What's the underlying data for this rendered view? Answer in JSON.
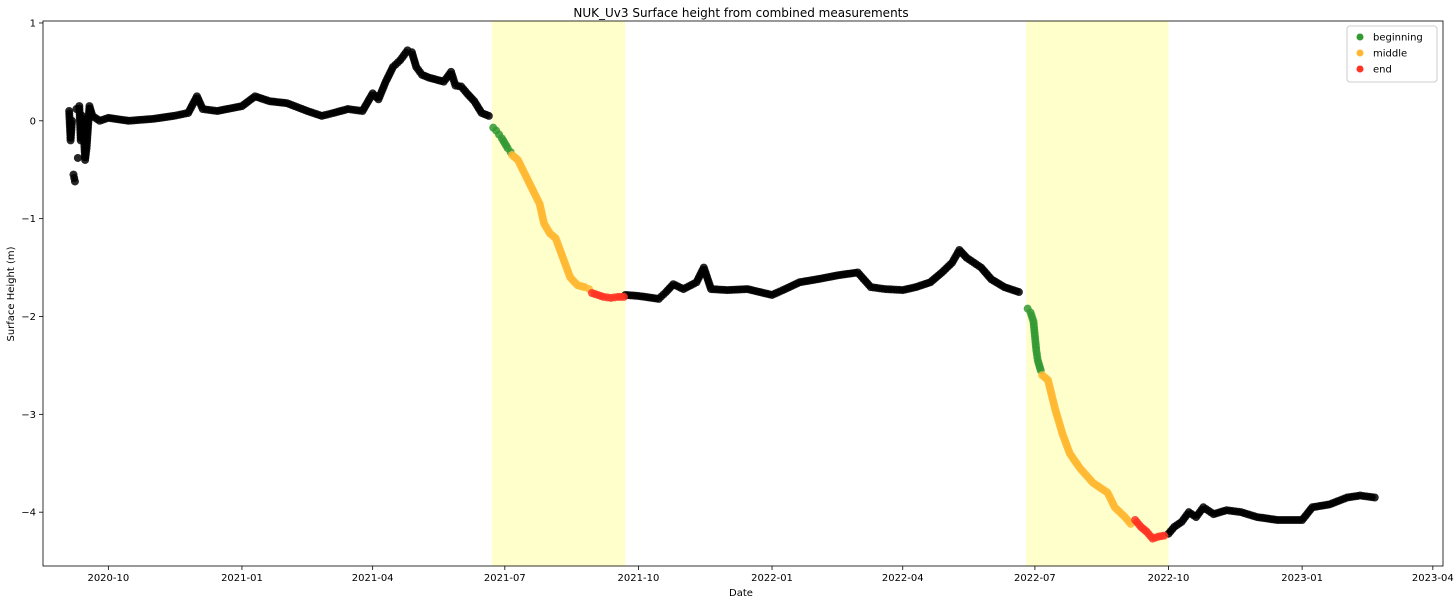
{
  "chart_data": {
    "type": "scatter",
    "title": "NUK_Uv3 Surface height from combined measurements",
    "xlabel": "Date",
    "ylabel": "Surface Height (m)",
    "xlim": [
      "2020-08-17",
      "2023-04-08"
    ],
    "ylim": [
      -4.55,
      1.02
    ],
    "grid": false,
    "legend_position": "top-right",
    "x_ticks": [
      "2020-10",
      "2021-01",
      "2021-04",
      "2021-07",
      "2021-10",
      "2022-01",
      "2022-04",
      "2022-07",
      "2022-10",
      "2023-01",
      "2023-04"
    ],
    "y_ticks": [
      1,
      0,
      -1,
      -2,
      -3,
      -4
    ],
    "shaded_periods": [
      {
        "start": "2021-06-22",
        "end": "2021-09-22",
        "color": "#ffffcc"
      },
      {
        "start": "2022-06-25",
        "end": "2022-10-01",
        "color": "#ffffcc"
      }
    ],
    "series": [
      {
        "name": "",
        "color": "#000000",
        "points": [
          [
            "2020-09-04",
            0.1
          ],
          [
            "2020-09-05",
            -0.2
          ],
          [
            "2020-09-06",
            0.0
          ],
          [
            "2020-09-07",
            -0.55
          ],
          [
            "2020-09-08",
            -0.62
          ],
          [
            "2020-09-09",
            0.12
          ],
          [
            "2020-09-10",
            -0.38
          ],
          [
            "2020-09-11",
            0.15
          ],
          [
            "2020-09-12",
            -0.2
          ],
          [
            "2020-09-13",
            0.05
          ],
          [
            "2020-09-14",
            -0.1
          ],
          [
            "2020-09-15",
            -0.4
          ],
          [
            "2020-09-16",
            -0.28
          ],
          [
            "2020-09-18",
            0.15
          ],
          [
            "2020-09-20",
            0.05
          ],
          [
            "2020-09-25",
            0.0
          ],
          [
            "2020-10-01",
            0.03
          ],
          [
            "2020-10-15",
            0.0
          ],
          [
            "2020-11-01",
            0.02
          ],
          [
            "2020-11-15",
            0.05
          ],
          [
            "2020-11-25",
            0.08
          ],
          [
            "2020-12-01",
            0.25
          ],
          [
            "2020-12-05",
            0.12
          ],
          [
            "2020-12-15",
            0.1
          ],
          [
            "2021-01-01",
            0.15
          ],
          [
            "2021-01-10",
            0.25
          ],
          [
            "2021-01-20",
            0.2
          ],
          [
            "2021-02-01",
            0.18
          ],
          [
            "2021-02-15",
            0.1
          ],
          [
            "2021-02-25",
            0.05
          ],
          [
            "2021-03-05",
            0.08
          ],
          [
            "2021-03-15",
            0.12
          ],
          [
            "2021-03-25",
            0.1
          ],
          [
            "2021-04-01",
            0.28
          ],
          [
            "2021-04-05",
            0.22
          ],
          [
            "2021-04-10",
            0.4
          ],
          [
            "2021-04-15",
            0.55
          ],
          [
            "2021-04-20",
            0.62
          ],
          [
            "2021-04-25",
            0.72
          ],
          [
            "2021-04-28",
            0.7
          ],
          [
            "2021-05-01",
            0.55
          ],
          [
            "2021-05-05",
            0.47
          ],
          [
            "2021-05-10",
            0.44
          ],
          [
            "2021-05-15",
            0.42
          ],
          [
            "2021-05-20",
            0.4
          ],
          [
            "2021-05-25",
            0.5
          ],
          [
            "2021-05-28",
            0.36
          ],
          [
            "2021-06-01",
            0.35
          ],
          [
            "2021-06-05",
            0.28
          ],
          [
            "2021-06-10",
            0.2
          ],
          [
            "2021-06-15",
            0.08
          ],
          [
            "2021-06-20",
            0.05
          ],
          [
            "2021-09-22",
            -1.78
          ],
          [
            "2021-10-01",
            -1.79
          ],
          [
            "2021-10-15",
            -1.82
          ],
          [
            "2021-10-20",
            -1.75
          ],
          [
            "2021-10-25",
            -1.67
          ],
          [
            "2021-11-01",
            -1.72
          ],
          [
            "2021-11-10",
            -1.65
          ],
          [
            "2021-11-15",
            -1.5
          ],
          [
            "2021-11-20",
            -1.72
          ],
          [
            "2021-12-01",
            -1.73
          ],
          [
            "2021-12-15",
            -1.72
          ],
          [
            "2022-01-01",
            -1.78
          ],
          [
            "2022-01-10",
            -1.72
          ],
          [
            "2022-01-20",
            -1.65
          ],
          [
            "2022-02-01",
            -1.62
          ],
          [
            "2022-02-15",
            -1.58
          ],
          [
            "2022-03-01",
            -1.55
          ],
          [
            "2022-03-10",
            -1.7
          ],
          [
            "2022-03-20",
            -1.72
          ],
          [
            "2022-04-01",
            -1.73
          ],
          [
            "2022-04-10",
            -1.7
          ],
          [
            "2022-04-20",
            -1.65
          ],
          [
            "2022-04-28",
            -1.55
          ],
          [
            "2022-05-05",
            -1.45
          ],
          [
            "2022-05-10",
            -1.32
          ],
          [
            "2022-05-15",
            -1.4
          ],
          [
            "2022-05-20",
            -1.45
          ],
          [
            "2022-05-25",
            -1.5
          ],
          [
            "2022-06-01",
            -1.62
          ],
          [
            "2022-06-10",
            -1.7
          ],
          [
            "2022-06-20",
            -1.75
          ],
          [
            "2022-10-01",
            -4.22
          ],
          [
            "2022-10-05",
            -4.15
          ],
          [
            "2022-10-10",
            -4.1
          ],
          [
            "2022-10-15",
            -4.0
          ],
          [
            "2022-10-20",
            -4.05
          ],
          [
            "2022-10-25",
            -3.95
          ],
          [
            "2022-11-01",
            -4.02
          ],
          [
            "2022-11-10",
            -3.98
          ],
          [
            "2022-11-20",
            -4.0
          ],
          [
            "2022-12-01",
            -4.05
          ],
          [
            "2022-12-15",
            -4.08
          ],
          [
            "2023-01-01",
            -4.08
          ],
          [
            "2023-01-08",
            -3.95
          ],
          [
            "2023-01-20",
            -3.92
          ],
          [
            "2023-02-01",
            -3.85
          ],
          [
            "2023-02-10",
            -3.83
          ],
          [
            "2023-02-20",
            -3.85
          ]
        ]
      },
      {
        "name": "beginning",
        "color": "#339933",
        "points": [
          [
            "2021-06-23",
            -0.07
          ],
          [
            "2021-06-25",
            -0.1
          ],
          [
            "2021-06-27",
            -0.14
          ],
          [
            "2021-06-29",
            -0.18
          ],
          [
            "2021-07-01",
            -0.23
          ],
          [
            "2021-07-03",
            -0.28
          ],
          [
            "2021-07-05",
            -0.32
          ],
          [
            "2022-06-26",
            -1.92
          ],
          [
            "2022-06-28",
            -1.96
          ],
          [
            "2022-06-30",
            -2.05
          ],
          [
            "2022-07-01",
            -2.2
          ],
          [
            "2022-07-02",
            -2.35
          ],
          [
            "2022-07-03",
            -2.45
          ],
          [
            "2022-07-05",
            -2.55
          ]
        ]
      },
      {
        "name": "middle",
        "color": "#ffb833",
        "points": [
          [
            "2021-07-06",
            -0.35
          ],
          [
            "2021-07-10",
            -0.4
          ],
          [
            "2021-07-15",
            -0.55
          ],
          [
            "2021-07-20",
            -0.7
          ],
          [
            "2021-07-25",
            -0.85
          ],
          [
            "2021-07-28",
            -1.05
          ],
          [
            "2021-08-01",
            -1.15
          ],
          [
            "2021-08-05",
            -1.2
          ],
          [
            "2021-08-10",
            -1.4
          ],
          [
            "2021-08-15",
            -1.6
          ],
          [
            "2021-08-20",
            -1.68
          ],
          [
            "2021-08-25",
            -1.7
          ],
          [
            "2021-08-28",
            -1.72
          ],
          [
            "2022-07-06",
            -2.6
          ],
          [
            "2022-07-10",
            -2.65
          ],
          [
            "2022-07-15",
            -2.95
          ],
          [
            "2022-07-20",
            -3.2
          ],
          [
            "2022-07-25",
            -3.4
          ],
          [
            "2022-08-01",
            -3.55
          ],
          [
            "2022-08-10",
            -3.7
          ],
          [
            "2022-08-20",
            -3.8
          ],
          [
            "2022-08-25",
            -3.95
          ],
          [
            "2022-09-01",
            -4.05
          ],
          [
            "2022-09-05",
            -4.12
          ]
        ]
      },
      {
        "name": "end",
        "color": "#ff3322",
        "points": [
          [
            "2021-08-30",
            -1.76
          ],
          [
            "2021-09-03",
            -1.78
          ],
          [
            "2021-09-07",
            -1.8
          ],
          [
            "2021-09-12",
            -1.81
          ],
          [
            "2021-09-17",
            -1.8
          ],
          [
            "2021-09-21",
            -1.8
          ],
          [
            "2022-09-08",
            -4.08
          ],
          [
            "2022-09-12",
            -4.15
          ],
          [
            "2022-09-16",
            -4.2
          ],
          [
            "2022-09-20",
            -4.27
          ],
          [
            "2022-09-24",
            -4.25
          ],
          [
            "2022-09-28",
            -4.24
          ]
        ]
      }
    ]
  }
}
